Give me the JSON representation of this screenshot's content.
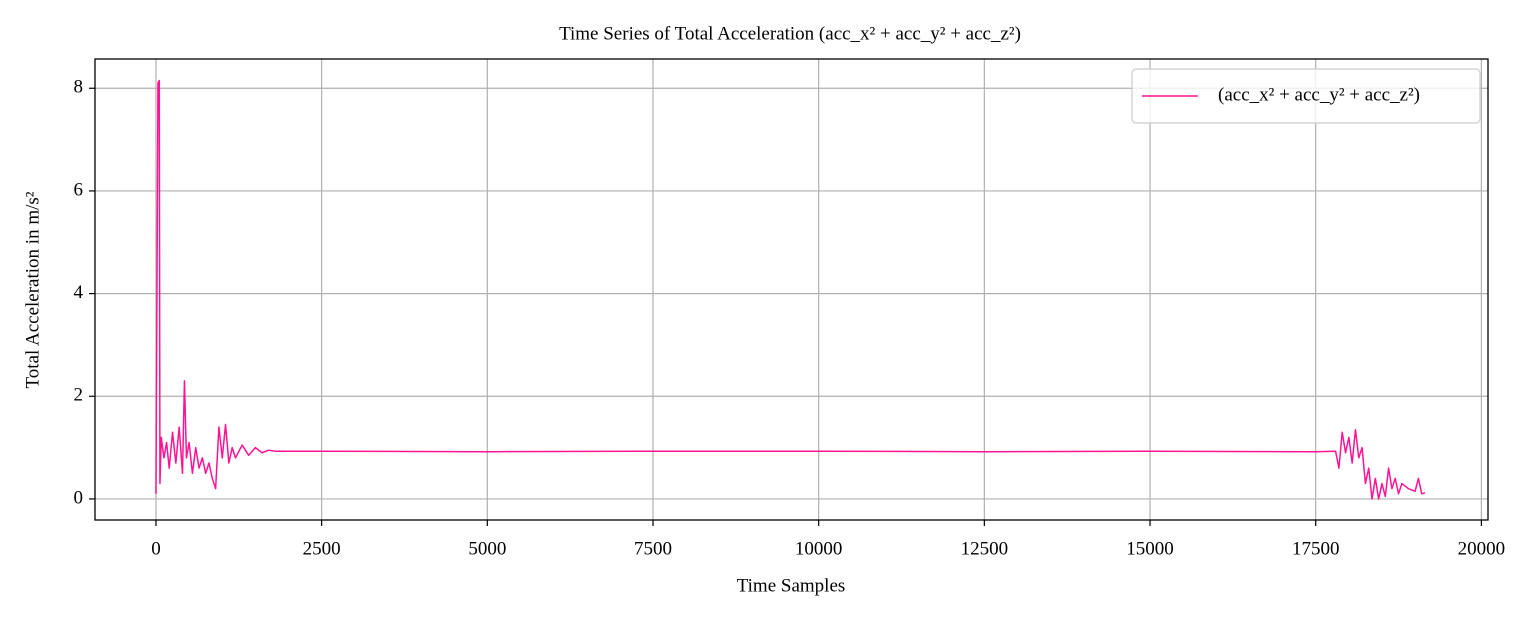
{
  "chart_data": {
    "type": "line",
    "title": "Time Series of Total Acceleration (acc_x² + acc_y² + acc_z²)",
    "xlabel": "Time Samples",
    "ylabel": "Total Acceleration in m/s²",
    "x": [
      0,
      30,
      50,
      60,
      80,
      120,
      160,
      200,
      250,
      300,
      350,
      400,
      430,
      460,
      500,
      550,
      600,
      650,
      700,
      750,
      800,
      850,
      900,
      950,
      1000,
      1050,
      1100,
      1150,
      1200,
      1300,
      1400,
      1500,
      1600,
      1700,
      1800,
      2500,
      5000,
      7500,
      10000,
      12500,
      15000,
      17500,
      17800,
      17850,
      17900,
      17950,
      18000,
      18050,
      18100,
      18150,
      18200,
      18250,
      18300,
      18350,
      18400,
      18450,
      18500,
      18550,
      18600,
      18650,
      18700,
      18750,
      18800,
      18900,
      19000,
      19050,
      19100,
      19150
    ],
    "series": [
      {
        "name": "(acc_x² + acc_y² + acc_z²)",
        "color": "#ff1493",
        "values": [
          0.1,
          8.1,
          8.15,
          0.3,
          1.2,
          0.8,
          1.1,
          0.6,
          1.3,
          0.7,
          1.4,
          0.5,
          2.3,
          0.8,
          1.1,
          0.5,
          1.0,
          0.6,
          0.8,
          0.5,
          0.7,
          0.4,
          0.2,
          1.4,
          0.8,
          1.45,
          0.7,
          1.0,
          0.8,
          1.05,
          0.85,
          1.0,
          0.9,
          0.95,
          0.93,
          0.93,
          0.92,
          0.93,
          0.93,
          0.92,
          0.93,
          0.92,
          0.93,
          0.6,
          1.3,
          0.9,
          1.2,
          0.7,
          1.35,
          0.8,
          1.0,
          0.3,
          0.6,
          0.0,
          0.4,
          0.0,
          0.3,
          0.05,
          0.6,
          0.2,
          0.4,
          0.1,
          0.3,
          0.2,
          0.15,
          0.4,
          0.1,
          0.12
        ]
      }
    ],
    "xlim": [
      -920,
      20100
    ],
    "ylim": [
      -0.41,
      8.57
    ],
    "xticks": [
      0,
      2500,
      5000,
      7500,
      10000,
      12500,
      15000,
      17500,
      20000
    ],
    "yticks": [
      0,
      2,
      4,
      6,
      8
    ],
    "grid": true,
    "legend": "upper right"
  }
}
